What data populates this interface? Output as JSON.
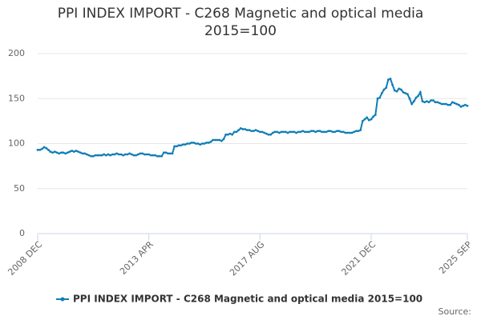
{
  "chart_data": {
    "type": "line",
    "title": "PPI INDEX IMPORT - C268 Magnetic and optical media 2015=100",
    "source_label": "Source:",
    "categories": [
      "2008 DEC",
      null,
      null,
      null,
      null,
      null,
      null,
      null,
      null,
      null,
      null,
      null,
      null,
      null,
      null,
      null,
      null,
      null,
      null,
      null,
      null,
      null,
      null,
      null,
      null,
      null,
      null,
      null,
      null,
      null,
      null,
      null,
      null,
      null,
      null,
      null,
      null,
      null,
      null,
      null,
      null,
      null,
      null,
      null,
      null,
      null,
      null,
      null,
      null,
      null,
      null,
      null,
      "2013 APR",
      null,
      null,
      null,
      null,
      null,
      null,
      null,
      null,
      null,
      null,
      null,
      null,
      null,
      null,
      null,
      null,
      null,
      null,
      null,
      null,
      null,
      null,
      null,
      null,
      null,
      null,
      null,
      null,
      null,
      null,
      null,
      null,
      null,
      null,
      null,
      null,
      null,
      null,
      null,
      null,
      null,
      null,
      null,
      null,
      null,
      null,
      null,
      null,
      null,
      null,
      null,
      "2017 AUG",
      null,
      null,
      null,
      null,
      null,
      null,
      null,
      null,
      null,
      null,
      null,
      null,
      null,
      null,
      null,
      null,
      null,
      null,
      null,
      null,
      null,
      null,
      null,
      null,
      null,
      null,
      null,
      null,
      null,
      null,
      null,
      null,
      null,
      null,
      null,
      null,
      null,
      null,
      null,
      null,
      null,
      null,
      null,
      null,
      null,
      null,
      null,
      null,
      null,
      null,
      null,
      "2021 DEC",
      null,
      null,
      null,
      null,
      null,
      null,
      null,
      null,
      null,
      null,
      null,
      null,
      null,
      null,
      null,
      null,
      null,
      null,
      null,
      null,
      null,
      null,
      null,
      null,
      null,
      null,
      null,
      null,
      null,
      null,
      null,
      null,
      null,
      null,
      null,
      null,
      null,
      null,
      null,
      null,
      null,
      null,
      null,
      null,
      "2025 SEP"
    ],
    "series": [
      {
        "name": "PPI INDEX IMPORT - C268 Magnetic and optical media 2015=100",
        "color": "#0f7eb5",
        "values": [
          93,
          93,
          94,
          96,
          95,
          93,
          91,
          90,
          91,
          90,
          89,
          90,
          90,
          89,
          90,
          91,
          92,
          91,
          92,
          91,
          90,
          89,
          89,
          88,
          87,
          86,
          86,
          87,
          87,
          87,
          87,
          88,
          87,
          88,
          87,
          88,
          88,
          89,
          88,
          88,
          87,
          88,
          88,
          89,
          88,
          87,
          87,
          88,
          89,
          89,
          88,
          88,
          88,
          87,
          87,
          87,
          86,
          86,
          86,
          90,
          90,
          89,
          89,
          89,
          97,
          97,
          98,
          98,
          99,
          99,
          100,
          100,
          101,
          101,
          100,
          100,
          99,
          100,
          100,
          101,
          101,
          102,
          104,
          104,
          104,
          104,
          103,
          105,
          110,
          110,
          111,
          110,
          113,
          113,
          115,
          117,
          116,
          116,
          115,
          115,
          114,
          114,
          115,
          114,
          113,
          113,
          112,
          111,
          110,
          110,
          112,
          113,
          113,
          112,
          113,
          113,
          113,
          112,
          113,
          113,
          113,
          112,
          113,
          113,
          114,
          113,
          113,
          113,
          114,
          114,
          113,
          114,
          114,
          113,
          113,
          113,
          114,
          114,
          113,
          113,
          114,
          114,
          113,
          113,
          112,
          112,
          112,
          112,
          113,
          114,
          114,
          115,
          125,
          127,
          129,
          126,
          127,
          130,
          132,
          150,
          151,
          156,
          160,
          162,
          171,
          172,
          165,
          159,
          158,
          161,
          160,
          157,
          156,
          155,
          150,
          144,
          147,
          151,
          153,
          157,
          147,
          146,
          147,
          146,
          148,
          148,
          146,
          146,
          145,
          144,
          144,
          144,
          143,
          143,
          146,
          145,
          144,
          143,
          141,
          142,
          143,
          142
        ]
      }
    ],
    "ylim": [
      0,
      200
    ],
    "yticks": [
      0,
      50,
      100,
      150,
      200
    ],
    "grid": true
  }
}
